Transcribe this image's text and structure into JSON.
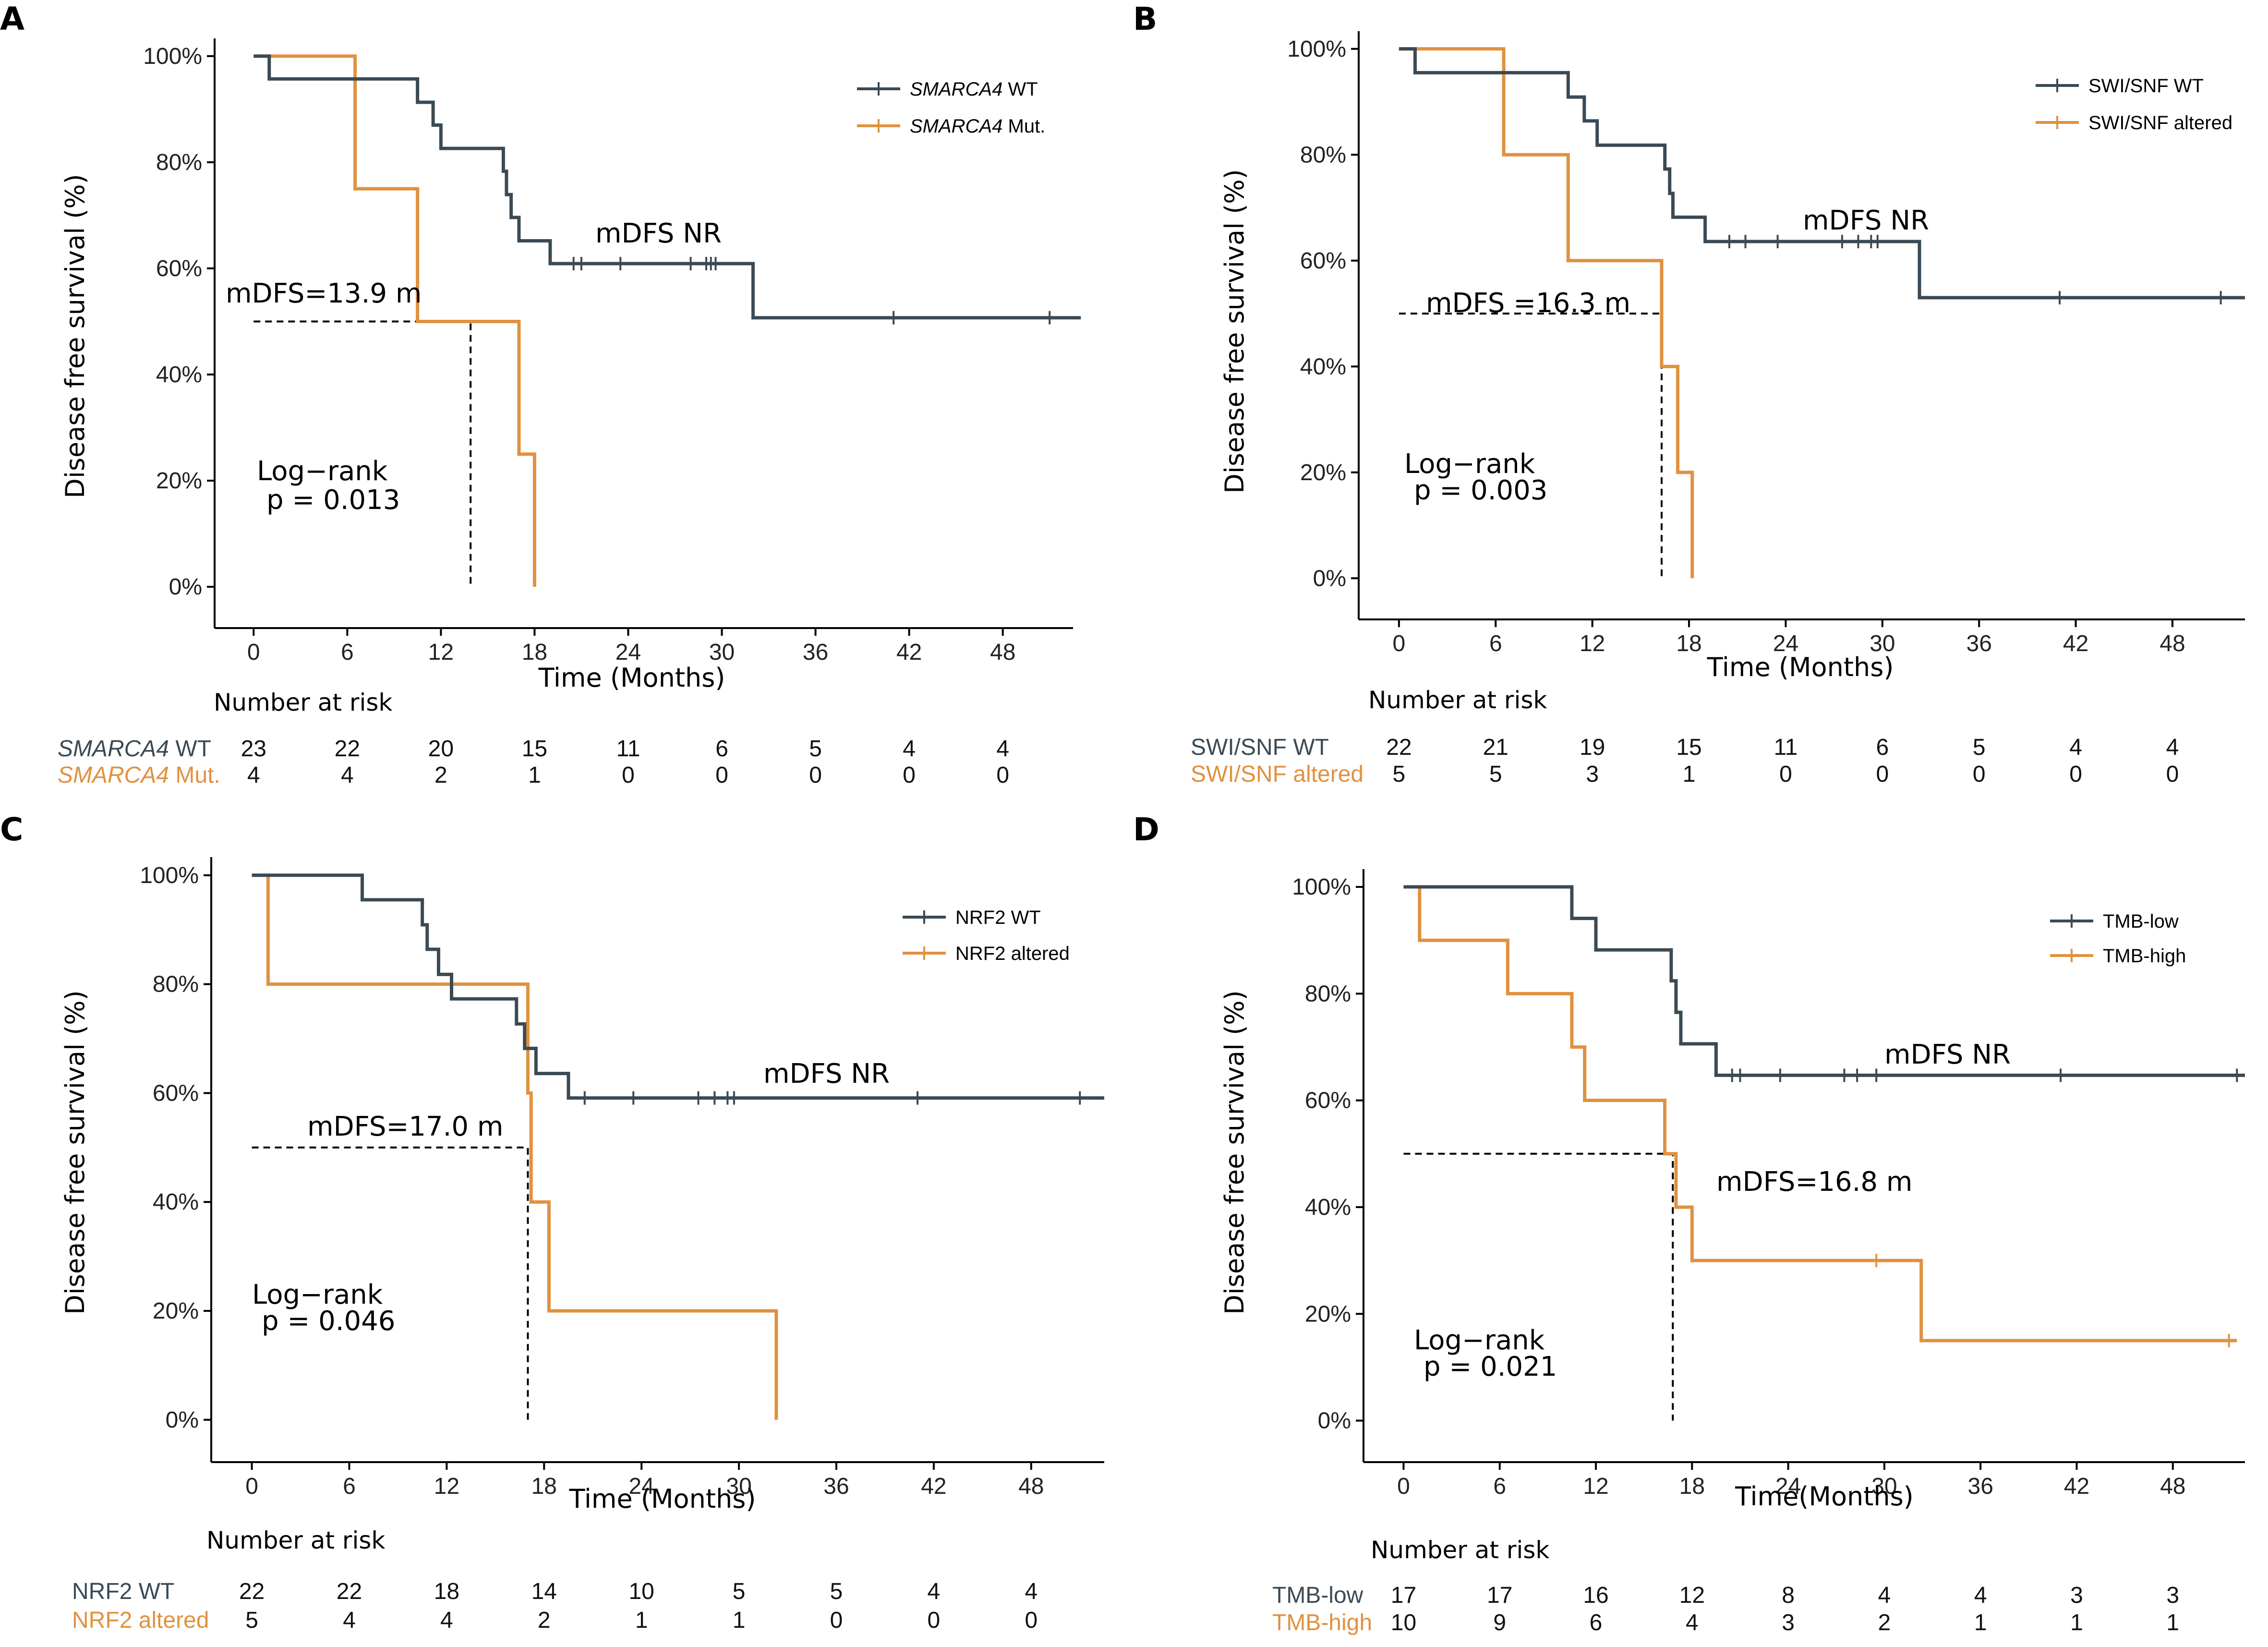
{
  "colors": {
    "wt": "#3a4a55",
    "mut": "#e0913f",
    "axis": "#000000"
  },
  "chart_data": [
    {
      "type": "kaplan-meier",
      "panel": "A",
      "xlabel": "Time (Months)",
      "ylabel": "Disease free survival (%)",
      "xticks": [
        0,
        6,
        12,
        18,
        24,
        30,
        36,
        42,
        48
      ],
      "yticks": [
        "0%",
        "20%",
        "40%",
        "60%",
        "80%",
        "100%"
      ],
      "xlim": [
        -2.5,
        52.5
      ],
      "ylim": [
        -5,
        105
      ],
      "series": [
        {
          "name": "SMARCA4 WT",
          "legend_name": "SMARCA4",
          "legend_suffix": " WT",
          "italic": true,
          "color_key": "wt",
          "steps": [
            [
              0,
              100
            ],
            [
              1,
              95.7
            ],
            [
              10.5,
              91.3
            ],
            [
              11.5,
              87
            ],
            [
              12,
              82.6
            ],
            [
              16,
              78.3
            ],
            [
              16.2,
              73.9
            ],
            [
              16.5,
              69.6
            ],
            [
              17,
              65.2
            ],
            [
              19,
              60.9
            ],
            [
              32,
              50.7
            ],
            [
              53,
              50.7
            ]
          ],
          "censors": [
            [
              20.5,
              60.9
            ],
            [
              21,
              60.9
            ],
            [
              23.5,
              60.9
            ],
            [
              28,
              60.9
            ],
            [
              29,
              60.9
            ],
            [
              29.3,
              60.9
            ],
            [
              29.6,
              60.9
            ],
            [
              41,
              50.7
            ],
            [
              51,
              50.7
            ]
          ]
        },
        {
          "name": "SMARCA4 Mut.",
          "legend_name": "SMARCA4",
          "legend_suffix": " Mut.",
          "italic": true,
          "color_key": "mut",
          "steps": [
            [
              0,
              100
            ],
            [
              6.5,
              75
            ],
            [
              10.5,
              50
            ],
            [
              17,
              25
            ],
            [
              18,
              0
            ]
          ],
          "censors": []
        }
      ],
      "median_line": {
        "x": 13.9,
        "y": 50,
        "x_start": 0
      },
      "annotations": {
        "median_wt": "mDFS NR",
        "median_mut": "mDFS=13.9 m",
        "logrank_label": "Log−rank",
        "p_value": "p = 0.013"
      },
      "risk_table": {
        "title": "Number at risk",
        "rows": [
          {
            "label": "SMARCA4",
            "suffix": " WT",
            "italic": true,
            "color_key": "wt",
            "values": [
              23,
              22,
              20,
              15,
              11,
              6,
              5,
              4,
              4
            ]
          },
          {
            "label": "SMARCA4",
            "suffix": " Mut.",
            "italic": true,
            "color_key": "mut",
            "values": [
              4,
              4,
              2,
              1,
              0,
              0,
              0,
              0,
              0
            ]
          }
        ]
      }
    },
    {
      "type": "kaplan-meier",
      "panel": "B",
      "xlabel": "Time (Months)",
      "ylabel": "Disease free survival (%)",
      "xticks": [
        0,
        6,
        12,
        18,
        24,
        30,
        36,
        42,
        48
      ],
      "yticks": [
        "0%",
        "20%",
        "40%",
        "60%",
        "80%",
        "100%"
      ],
      "xlim": [
        -2.5,
        52.5
      ],
      "ylim": [
        -5,
        105
      ],
      "series": [
        {
          "name": "SWI/SNF WT",
          "legend_name": "SWI/SNF WT",
          "legend_suffix": "",
          "italic": false,
          "color_key": "wt",
          "steps": [
            [
              0,
              100
            ],
            [
              1,
              95.5
            ],
            [
              10.5,
              90.9
            ],
            [
              11.5,
              86.4
            ],
            [
              12.3,
              81.8
            ],
            [
              16.5,
              77.3
            ],
            [
              16.8,
              72.7
            ],
            [
              17,
              68.2
            ],
            [
              19,
              63.6
            ],
            [
              32.3,
              53
            ],
            [
              52.5,
              53
            ]
          ],
          "censors": [
            [
              20.5,
              63.6
            ],
            [
              21.5,
              63.6
            ],
            [
              23.5,
              63.6
            ],
            [
              27.5,
              63.6
            ],
            [
              28.5,
              63.6
            ],
            [
              29.3,
              63.6
            ],
            [
              29.7,
              63.6
            ],
            [
              41,
              53
            ],
            [
              51,
              53
            ]
          ]
        },
        {
          "name": "SWI/SNF altered",
          "legend_name": "SWI/SNF altered",
          "legend_suffix": "",
          "italic": false,
          "color_key": "mut",
          "steps": [
            [
              0,
              100
            ],
            [
              6.5,
              80
            ],
            [
              10.5,
              60
            ],
            [
              16.3,
              40
            ],
            [
              17.3,
              20
            ],
            [
              18.2,
              0
            ]
          ],
          "censors": []
        }
      ],
      "median_line": {
        "x": 16.3,
        "y": 50,
        "x_start": 0
      },
      "annotations": {
        "median_wt": "mDFS NR",
        "median_mut": "mDFS =16.3 m",
        "logrank_label": "Log−rank",
        "p_value": "p = 0.003"
      },
      "risk_table": {
        "title": "Number at risk",
        "rows": [
          {
            "label": "SWI/SNF WT",
            "suffix": "",
            "italic": false,
            "color_key": "wt",
            "values": [
              22,
              21,
              19,
              15,
              11,
              6,
              5,
              4,
              4
            ]
          },
          {
            "label": "SWI/SNF altered",
            "suffix": "",
            "italic": false,
            "color_key": "mut",
            "values": [
              5,
              5,
              3,
              1,
              0,
              0,
              0,
              0,
              0
            ]
          }
        ]
      }
    },
    {
      "type": "kaplan-meier",
      "panel": "C",
      "xlabel": "Time (Months)",
      "ylabel": "Disease free survival (%)",
      "xticks": [
        0,
        6,
        12,
        18,
        24,
        30,
        36,
        42,
        48
      ],
      "yticks": [
        "0%",
        "20%",
        "40%",
        "60%",
        "80%",
        "100%"
      ],
      "xlim": [
        -2.5,
        52.5
      ],
      "ylim": [
        -5,
        105
      ],
      "series": [
        {
          "name": "NRF2 WT",
          "legend_name": "NRF2 WT",
          "legend_suffix": "",
          "italic": false,
          "color_key": "wt",
          "steps": [
            [
              0,
              100
            ],
            [
              1,
              100
            ],
            [
              6.8,
              95.5
            ],
            [
              10.5,
              90.9
            ],
            [
              10.8,
              86.4
            ],
            [
              11.5,
              81.8
            ],
            [
              12.3,
              77.3
            ],
            [
              16.3,
              72.7
            ],
            [
              16.8,
              68.2
            ],
            [
              17.5,
              63.6
            ],
            [
              19.5,
              59.1
            ],
            [
              52.5,
              59.1
            ]
          ],
          "censors": [
            [
              20.5,
              59.1
            ],
            [
              23.5,
              59.1
            ],
            [
              27.5,
              59.1
            ],
            [
              28.5,
              59.1
            ],
            [
              29.3,
              59.1
            ],
            [
              29.7,
              59.1
            ],
            [
              41,
              59.1
            ],
            [
              51,
              59.1
            ]
          ]
        },
        {
          "name": "NRF2 altered",
          "legend_name": "NRF2 altered",
          "legend_suffix": "",
          "italic": false,
          "color_key": "mut",
          "steps": [
            [
              0,
              100
            ],
            [
              1,
              80
            ],
            [
              17,
              60
            ],
            [
              17.2,
              40
            ],
            [
              18.3,
              20
            ],
            [
              32.3,
              0
            ]
          ],
          "censors": []
        }
      ],
      "median_line": {
        "x": 17.0,
        "y": 50,
        "x_start": 0
      },
      "annotations": {
        "median_wt": "mDFS NR",
        "median_mut": "mDFS=17.0 m",
        "logrank_label": "Log−rank",
        "p_value": "p = 0.046"
      },
      "risk_table": {
        "title": "Number at risk",
        "rows": [
          {
            "label": "NRF2 WT",
            "suffix": "",
            "italic": false,
            "color_key": "wt",
            "values": [
              22,
              22,
              18,
              14,
              10,
              5,
              5,
              4,
              4
            ]
          },
          {
            "label": "NRF2 altered",
            "suffix": "",
            "italic": false,
            "color_key": "mut",
            "values": [
              5,
              4,
              4,
              2,
              1,
              1,
              0,
              0,
              0
            ]
          }
        ]
      }
    },
    {
      "type": "kaplan-meier",
      "panel": "D",
      "xlabel": "Time(Months)",
      "ylabel": "Disease free survival (%)",
      "xticks": [
        0,
        6,
        12,
        18,
        24,
        30,
        36,
        42,
        48
      ],
      "yticks": [
        "0%",
        "20%",
        "40%",
        "60%",
        "80%",
        "100%"
      ],
      "xlim": [
        -2.5,
        52.5
      ],
      "ylim": [
        -5,
        105
      ],
      "series": [
        {
          "name": "TMB-low",
          "legend_name": "TMB-low",
          "legend_suffix": "",
          "italic": false,
          "color_key": "wt",
          "steps": [
            [
              0,
              100
            ],
            [
              10.5,
              94.1
            ],
            [
              12,
              88.2
            ],
            [
              16.7,
              82.4
            ],
            [
              17,
              76.5
            ],
            [
              17.3,
              70.6
            ],
            [
              19.5,
              64.7
            ],
            [
              52.5,
              64.7
            ]
          ],
          "censors": [
            [
              20.5,
              64.7
            ],
            [
              21,
              64.7
            ],
            [
              23.5,
              64.7
            ],
            [
              27.5,
              64.7
            ],
            [
              28.3,
              64.7
            ],
            [
              29.5,
              64.7
            ],
            [
              41,
              64.7
            ],
            [
              52,
              64.7
            ]
          ]
        },
        {
          "name": "TMB-high",
          "legend_name": "TMB-high",
          "legend_suffix": "",
          "italic": false,
          "color_key": "mut",
          "steps": [
            [
              0,
              100
            ],
            [
              1,
              90
            ],
            [
              6.5,
              80
            ],
            [
              10.5,
              70
            ],
            [
              11.3,
              60
            ],
            [
              16.3,
              50
            ],
            [
              17,
              40
            ],
            [
              18,
              30
            ],
            [
              32.3,
              15
            ],
            [
              52,
              15
            ]
          ],
          "censors": [
            [
              29.5,
              30
            ],
            [
              51.5,
              15
            ]
          ]
        }
      ],
      "median_line": {
        "x": 16.8,
        "y": 50,
        "x_start": 0
      },
      "annotations": {
        "median_wt": "mDFS NR",
        "median_mut": "mDFS=16.8 m",
        "logrank_label": "Log−rank",
        "p_value": "p = 0.021"
      },
      "risk_table": {
        "title": "Number at risk",
        "rows": [
          {
            "label": "TMB-low",
            "suffix": "",
            "italic": false,
            "color_key": "wt",
            "values": [
              17,
              17,
              16,
              12,
              8,
              4,
              4,
              3,
              3
            ]
          },
          {
            "label": "TMB-high",
            "suffix": "",
            "italic": false,
            "color_key": "mut",
            "values": [
              10,
              9,
              6,
              4,
              3,
              2,
              1,
              1,
              1
            ]
          }
        ]
      }
    }
  ]
}
